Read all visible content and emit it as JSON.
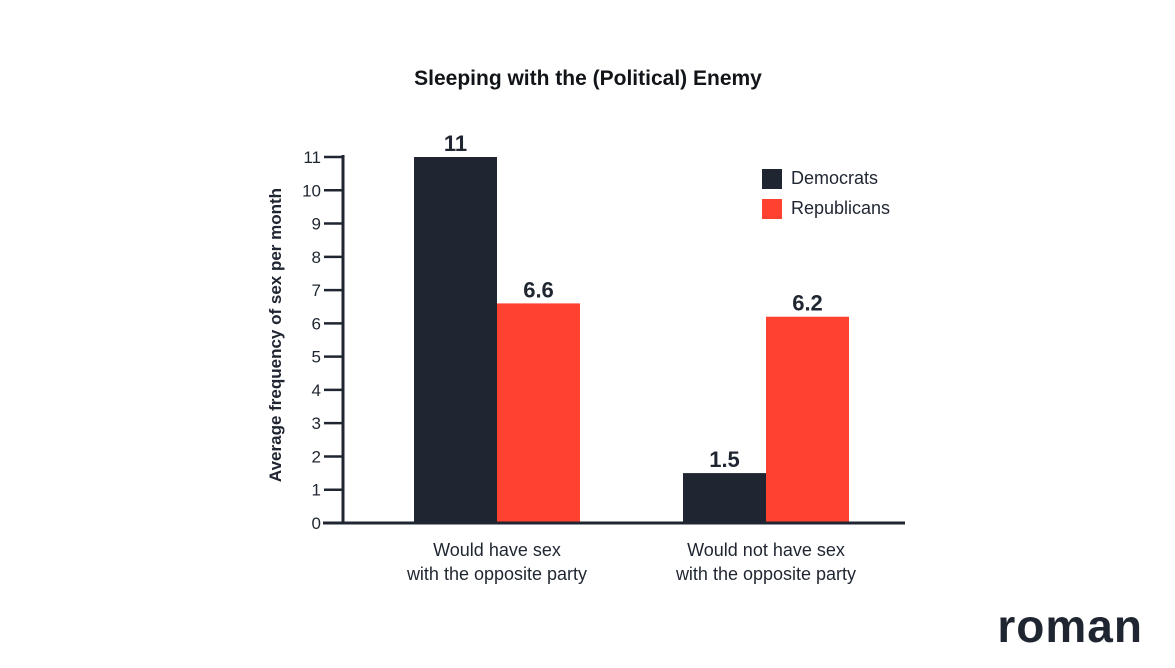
{
  "brand": {
    "logo_text": "roman"
  },
  "colors": {
    "democrats": "#1f2631",
    "republicans": "#ff4130",
    "axis": "#1f2631",
    "text": "#1f2631"
  },
  "chart_data": {
    "type": "bar",
    "title": "Sleeping with the (Political) Enemy",
    "xlabel": "",
    "ylabel": "Average frequency of sex per month",
    "ylim": [
      0,
      11
    ],
    "yticks": [
      0,
      1,
      2,
      3,
      4,
      5,
      6,
      7,
      8,
      9,
      10,
      11
    ],
    "categories": [
      [
        "Would have sex",
        "with the opposite party"
      ],
      [
        "Would not have sex",
        "with the opposite party"
      ]
    ],
    "series": [
      {
        "name": "Democrats",
        "values": [
          11,
          1.5
        ],
        "labels": [
          "11",
          "1.5"
        ],
        "color": "#1f2631"
      },
      {
        "name": "Republicans",
        "values": [
          6.6,
          6.2
        ],
        "labels": [
          "6.6",
          "6.2"
        ],
        "color": "#ff4130"
      }
    ],
    "legend": {
      "position": "top-right"
    },
    "grid": false
  }
}
